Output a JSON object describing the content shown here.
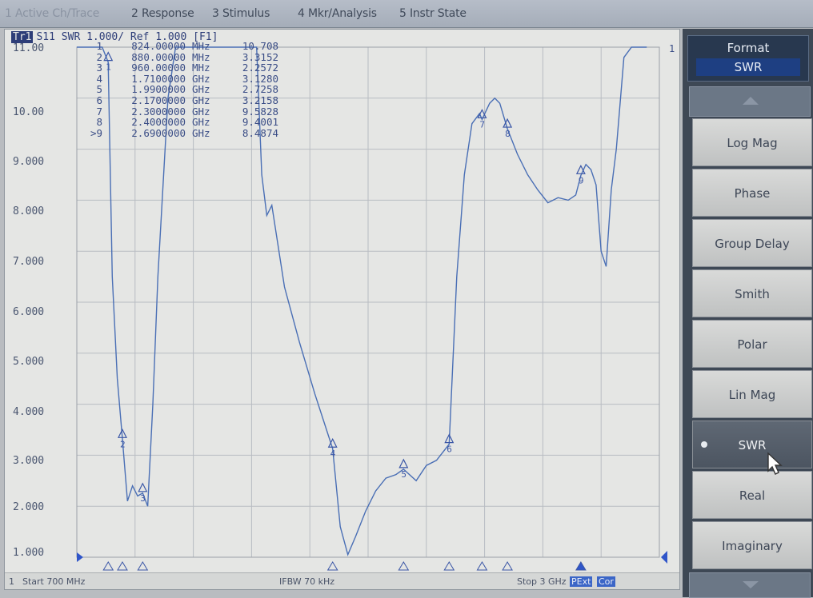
{
  "menubar": {
    "items": [
      "1 Active Ch/Trace",
      "2 Response",
      "3 Stimulus",
      "4 Mkr/Analysis",
      "5 Instr State"
    ]
  },
  "trace": {
    "badge": "Tr1",
    "title": "S11  SWR 1.000/ Ref 1.000 [F1]",
    "end_label": "1"
  },
  "markers": [
    {
      "n": "1",
      "freq": "824.00000",
      "unit": "MHz",
      "value": "10.708"
    },
    {
      "n": "2",
      "freq": "880.00000",
      "unit": "MHz",
      "value": "3.3152"
    },
    {
      "n": "3",
      "freq": "960.00000",
      "unit": "MHz",
      "value": "2.2572"
    },
    {
      "n": "4",
      "freq": "1.7100000",
      "unit": "GHz",
      "value": "3.1280"
    },
    {
      "n": "5",
      "freq": "1.9900000",
      "unit": "GHz",
      "value": "2.7258"
    },
    {
      "n": "6",
      "freq": "2.1700000",
      "unit": "GHz",
      "value": "3.2158"
    },
    {
      "n": "7",
      "freq": "2.3000000",
      "unit": "GHz",
      "value": "9.5828"
    },
    {
      "n": "8",
      "freq": "2.4000000",
      "unit": "GHz",
      "value": "9.4001"
    },
    {
      "n": ">9",
      "freq": "2.6900000",
      "unit": "GHz",
      "value": "8.4874"
    }
  ],
  "footer": {
    "channel": "1",
    "start": "Start 700 MHz",
    "ifbw": "IFBW 70 kHz",
    "stop": "Stop 3 GHz",
    "chip1": "PExt",
    "chip2": "Cor"
  },
  "panel": {
    "title": "Format",
    "current": "SWR",
    "buttons": [
      "Log Mag",
      "Phase",
      "Group Delay",
      "Smith",
      "Polar",
      "Lin Mag",
      "SWR",
      "Real",
      "Imaginary"
    ],
    "active": "SWR"
  },
  "colors": {
    "trace": "#4a6fb5",
    "marker": "#3a56a6",
    "active_marker": "#2f55c9",
    "grid": "#b8bcc2"
  },
  "chart_data": {
    "type": "line",
    "title": "S11  SWR 1.000/ Ref 1.000 [F1]",
    "xlabel": "",
    "ylabel": "",
    "xlim": [
      0.7,
      3.0
    ],
    "ylim": [
      1.0,
      11.0
    ],
    "x_unit": "GHz",
    "grid": true,
    "y_ticks": [
      "11.00",
      "10.00",
      "9.000",
      "8.000",
      "7.000",
      "6.000",
      "5.000",
      "4.000",
      "3.000",
      "2.000",
      "1.000"
    ],
    "series": [
      {
        "x": [
          0.7,
          0.77,
          0.8,
          0.824,
          0.84,
          0.86,
          0.88,
          0.9,
          0.92,
          0.94,
          0.96,
          0.98,
          1.0,
          1.02,
          1.06,
          1.09,
          1.1,
          1.2,
          1.3,
          1.39,
          1.41,
          1.43,
          1.45,
          1.47,
          1.52,
          1.58,
          1.64,
          1.71,
          1.74,
          1.77,
          1.8,
          1.84,
          1.88,
          1.92,
          1.96,
          1.99,
          2.04,
          2.08,
          2.12,
          2.17,
          2.2,
          2.23,
          2.26,
          2.29,
          2.3,
          2.33,
          2.35,
          2.37,
          2.4,
          2.44,
          2.48,
          2.52,
          2.56,
          2.6,
          2.64,
          2.67,
          2.69,
          2.71,
          2.73,
          2.75,
          2.77,
          2.79,
          2.81,
          2.83,
          2.86,
          2.89,
          2.92,
          2.95
        ],
        "y": [
          11.0,
          11.0,
          11.0,
          10.708,
          6.5,
          4.5,
          3.3152,
          2.1,
          2.4,
          2.2,
          2.2572,
          2.0,
          4.0,
          6.5,
          10.0,
          11.0,
          11.0,
          11.0,
          11.0,
          11.0,
          11.0,
          8.5,
          7.7,
          7.9,
          6.3,
          5.2,
          4.2,
          3.128,
          1.6,
          1.05,
          1.4,
          1.9,
          2.3,
          2.55,
          2.62,
          2.7258,
          2.5,
          2.8,
          2.9,
          3.2158,
          6.5,
          8.5,
          9.5,
          9.7,
          9.5828,
          9.9,
          10.0,
          9.9,
          9.4001,
          8.9,
          8.5,
          8.2,
          7.95,
          8.05,
          8.0,
          8.1,
          8.4874,
          8.7,
          8.6,
          8.3,
          7.0,
          6.7,
          8.2,
          9.0,
          10.8,
          11.0,
          11.0,
          11.0
        ]
      }
    ],
    "marker_points": [
      {
        "label": "1",
        "x": 0.824,
        "y": 10.708
      },
      {
        "label": "2",
        "x": 0.88,
        "y": 3.3152
      },
      {
        "label": "3",
        "x": 0.96,
        "y": 2.2572
      },
      {
        "label": "4",
        "x": 1.71,
        "y": 3.128
      },
      {
        "label": "5",
        "x": 1.99,
        "y": 2.7258
      },
      {
        "label": "6",
        "x": 2.17,
        "y": 3.2158
      },
      {
        "label": "7",
        "x": 2.3,
        "y": 9.5828
      },
      {
        "label": "8",
        "x": 2.4,
        "y": 9.4001
      },
      {
        "label": "9",
        "x": 2.69,
        "y": 8.4874
      }
    ]
  }
}
